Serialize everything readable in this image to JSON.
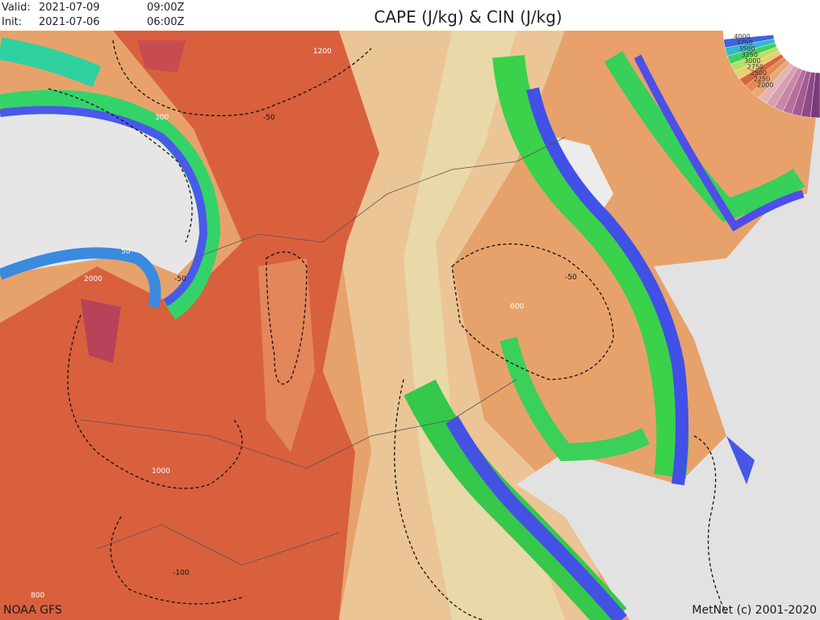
{
  "header": {
    "valid_label": "Valid:",
    "valid_date": "2021-07-09",
    "valid_time": "09:00Z",
    "init_label": "Init:",
    "init_date": "2021-07-06",
    "init_time": "06:00Z",
    "title": "CAPE (J/kg) & CIN (J/kg)"
  },
  "contour_labels": [
    "1200",
    "300",
    "-50",
    "50",
    "2000",
    "-50",
    "-50",
    "600",
    "1000",
    "-100",
    "800"
  ],
  "legend_labels": [
    "4000",
    "3750",
    "3500",
    "3250",
    "3000",
    "2750",
    "2500",
    "2250",
    "2000"
  ],
  "footer": {
    "model": "NOAA GFS",
    "credit": "MetNet (c) 2001-2020"
  }
}
